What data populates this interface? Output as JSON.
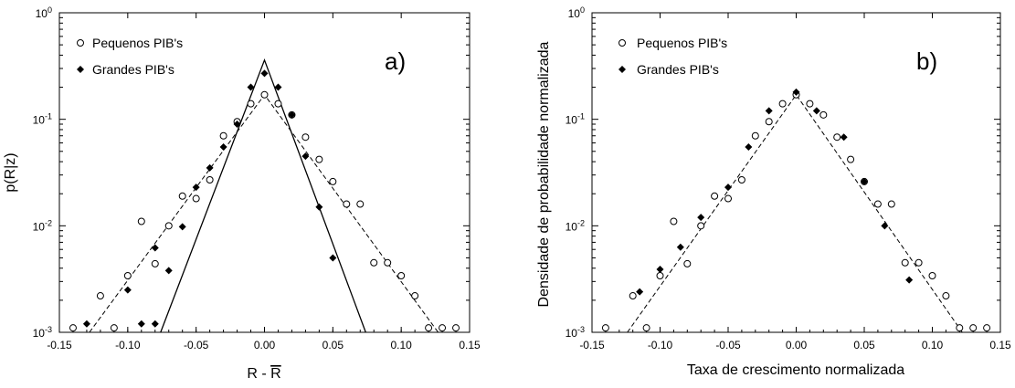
{
  "chart_data": [
    {
      "type": "scatter",
      "panel_label": "a)",
      "xlabel": "R - R",
      "xlabel_bar": "R",
      "ylabel": "p(R|z)",
      "xlim": [
        -0.15,
        0.15
      ],
      "ylim": [
        0.001,
        1
      ],
      "y_scale": "log",
      "x_ticks": [
        "-0.15",
        "-0.10",
        "-0.05",
        "0.00",
        "0.05",
        "0.10",
        "0.15"
      ],
      "legend_position": "top-left",
      "series": [
        {
          "name": "Pequenos PIB's",
          "marker": "open-circle",
          "points": [
            [
              -0.14,
              0.0011
            ],
            [
              -0.12,
              0.0022
            ],
            [
              -0.11,
              0.0011
            ],
            [
              -0.1,
              0.0034
            ],
            [
              -0.09,
              0.011
            ],
            [
              -0.08,
              0.0044
            ],
            [
              -0.07,
              0.01
            ],
            [
              -0.06,
              0.019
            ],
            [
              -0.05,
              0.018
            ],
            [
              -0.04,
              0.027
            ],
            [
              -0.03,
              0.07
            ],
            [
              -0.02,
              0.095
            ],
            [
              -0.01,
              0.14
            ],
            [
              0.0,
              0.17
            ],
            [
              0.01,
              0.14
            ],
            [
              0.02,
              0.11
            ],
            [
              0.03,
              0.068
            ],
            [
              0.04,
              0.042
            ],
            [
              0.05,
              0.026
            ],
            [
              0.06,
              0.016
            ],
            [
              0.07,
              0.016
            ],
            [
              0.08,
              0.0045
            ],
            [
              0.09,
              0.0045
            ],
            [
              0.1,
              0.0034
            ],
            [
              0.11,
              0.0022
            ],
            [
              0.12,
              0.0011
            ],
            [
              0.13,
              0.0011
            ],
            [
              0.14,
              0.0011
            ]
          ]
        },
        {
          "name": "Grandes PIB's",
          "marker": "filled-diamond",
          "points": [
            [
              -0.13,
              0.0012
            ],
            [
              -0.1,
              0.0025
            ],
            [
              -0.09,
              0.0012
            ],
            [
              -0.08,
              0.0012
            ],
            [
              -0.08,
              0.0062
            ],
            [
              -0.07,
              0.0038
            ],
            [
              -0.06,
              0.0098
            ],
            [
              -0.05,
              0.023
            ],
            [
              -0.04,
              0.035
            ],
            [
              -0.03,
              0.055
            ],
            [
              -0.02,
              0.09
            ],
            [
              -0.01,
              0.2
            ],
            [
              0.0,
              0.27
            ],
            [
              0.01,
              0.2
            ],
            [
              0.02,
              0.11
            ],
            [
              0.03,
              0.045
            ],
            [
              0.04,
              0.015
            ],
            [
              0.05,
              0.005
            ]
          ]
        }
      ],
      "fit_lines": [
        {
          "style": "dashed",
          "points": [
            [
              -0.128,
              0.001
            ],
            [
              0.0,
              0.17
            ],
            [
              0.127,
              0.001
            ]
          ]
        },
        {
          "style": "solid",
          "points": [
            [
              -0.076,
              0.001
            ],
            [
              0.0,
              0.36
            ],
            [
              0.074,
              0.001
            ]
          ]
        }
      ]
    },
    {
      "type": "scatter",
      "panel_label": "b)",
      "xlabel": "Taxa de crescimento normalizada",
      "ylabel": "Densidade de probabilidade normalizada",
      "xlim": [
        -0.15,
        0.15
      ],
      "ylim": [
        0.001,
        1
      ],
      "y_scale": "log",
      "x_ticks": [
        "-0.15",
        "-0.10",
        "-0.05",
        "0.00",
        "0.05",
        "0.10",
        "0.15"
      ],
      "legend_position": "top-left",
      "series": [
        {
          "name": "Pequenos PIB's",
          "marker": "open-circle",
          "points": [
            [
              -0.14,
              0.0011
            ],
            [
              -0.12,
              0.0022
            ],
            [
              -0.11,
              0.0011
            ],
            [
              -0.1,
              0.0034
            ],
            [
              -0.09,
              0.011
            ],
            [
              -0.08,
              0.0044
            ],
            [
              -0.07,
              0.01
            ],
            [
              -0.06,
              0.019
            ],
            [
              -0.05,
              0.018
            ],
            [
              -0.04,
              0.027
            ],
            [
              -0.03,
              0.07
            ],
            [
              -0.02,
              0.095
            ],
            [
              -0.01,
              0.14
            ],
            [
              0.0,
              0.17
            ],
            [
              0.01,
              0.14
            ],
            [
              0.02,
              0.11
            ],
            [
              0.03,
              0.068
            ],
            [
              0.04,
              0.042
            ],
            [
              0.05,
              0.026
            ],
            [
              0.06,
              0.016
            ],
            [
              0.07,
              0.016
            ],
            [
              0.08,
              0.0045
            ],
            [
              0.09,
              0.0045
            ],
            [
              0.1,
              0.0034
            ],
            [
              0.11,
              0.0022
            ],
            [
              0.12,
              0.0011
            ],
            [
              0.13,
              0.0011
            ],
            [
              0.14,
              0.0011
            ]
          ]
        },
        {
          "name": "Grandes PIB's",
          "marker": "filled-diamond",
          "points": [
            [
              -0.115,
              0.0024
            ],
            [
              -0.1,
              0.0039
            ],
            [
              -0.085,
              0.0063
            ],
            [
              -0.07,
              0.012
            ],
            [
              -0.05,
              0.023
            ],
            [
              -0.035,
              0.055
            ],
            [
              -0.02,
              0.12
            ],
            [
              0.0,
              0.18
            ],
            [
              0.015,
              0.12
            ],
            [
              0.035,
              0.068
            ],
            [
              0.05,
              0.026
            ],
            [
              0.065,
              0.01
            ],
            [
              0.083,
              0.0031
            ]
          ]
        }
      ],
      "fit_lines": [
        {
          "style": "dashed",
          "points": [
            [
              -0.124,
              0.001
            ],
            [
              0.0,
              0.17
            ],
            [
              0.122,
              0.001
            ]
          ]
        }
      ]
    }
  ]
}
